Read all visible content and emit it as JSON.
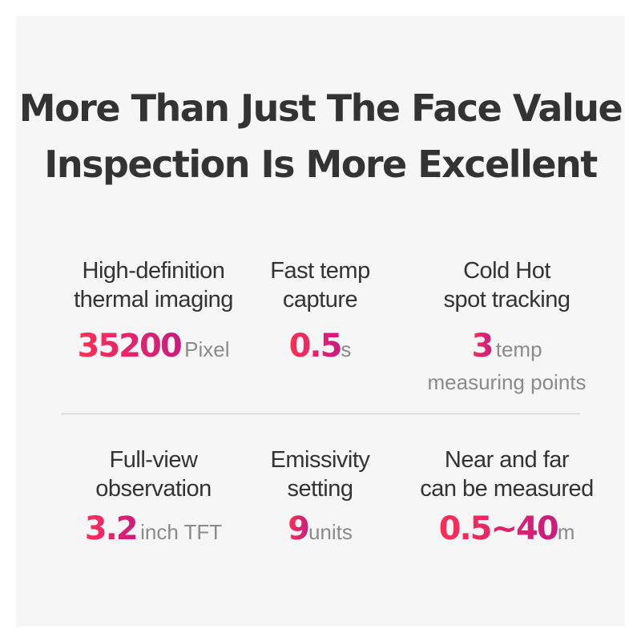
{
  "headline": {
    "line1": "More Than Just The Face Value",
    "line2": "Inspection Is More Excellent"
  },
  "features": [
    {
      "label_line1": "High-definition",
      "label_line2": "thermal imaging",
      "value": "35200",
      "unit": "Pixel",
      "unit_line2": ""
    },
    {
      "label_line1": "Fast temp",
      "label_line2": "capture",
      "value": "0.5",
      "unit": "s",
      "unit_line2": ""
    },
    {
      "label_line1": "Cold Hot",
      "label_line2": "spot tracking",
      "value": "3",
      "unit": "temp",
      "unit_line2": "measuring points"
    },
    {
      "label_line1": "Full-view",
      "label_line2": "observation",
      "value": "3.2",
      "unit": "inch TFT",
      "unit_line2": ""
    },
    {
      "label_line1": "Emissivity",
      "label_line2": "setting",
      "value": "9",
      "unit": "units",
      "unit_line2": ""
    },
    {
      "label_line1": "Near and far",
      "label_line2": "can be measured",
      "value": "0.5~40",
      "unit": "m",
      "unit_line2": ""
    }
  ],
  "colors": {
    "background": "#f6f6f6",
    "text": "#333333",
    "unit": "#8a8a8a",
    "accent_start": "#ff2f55",
    "accent_end": "#c81c7e"
  }
}
